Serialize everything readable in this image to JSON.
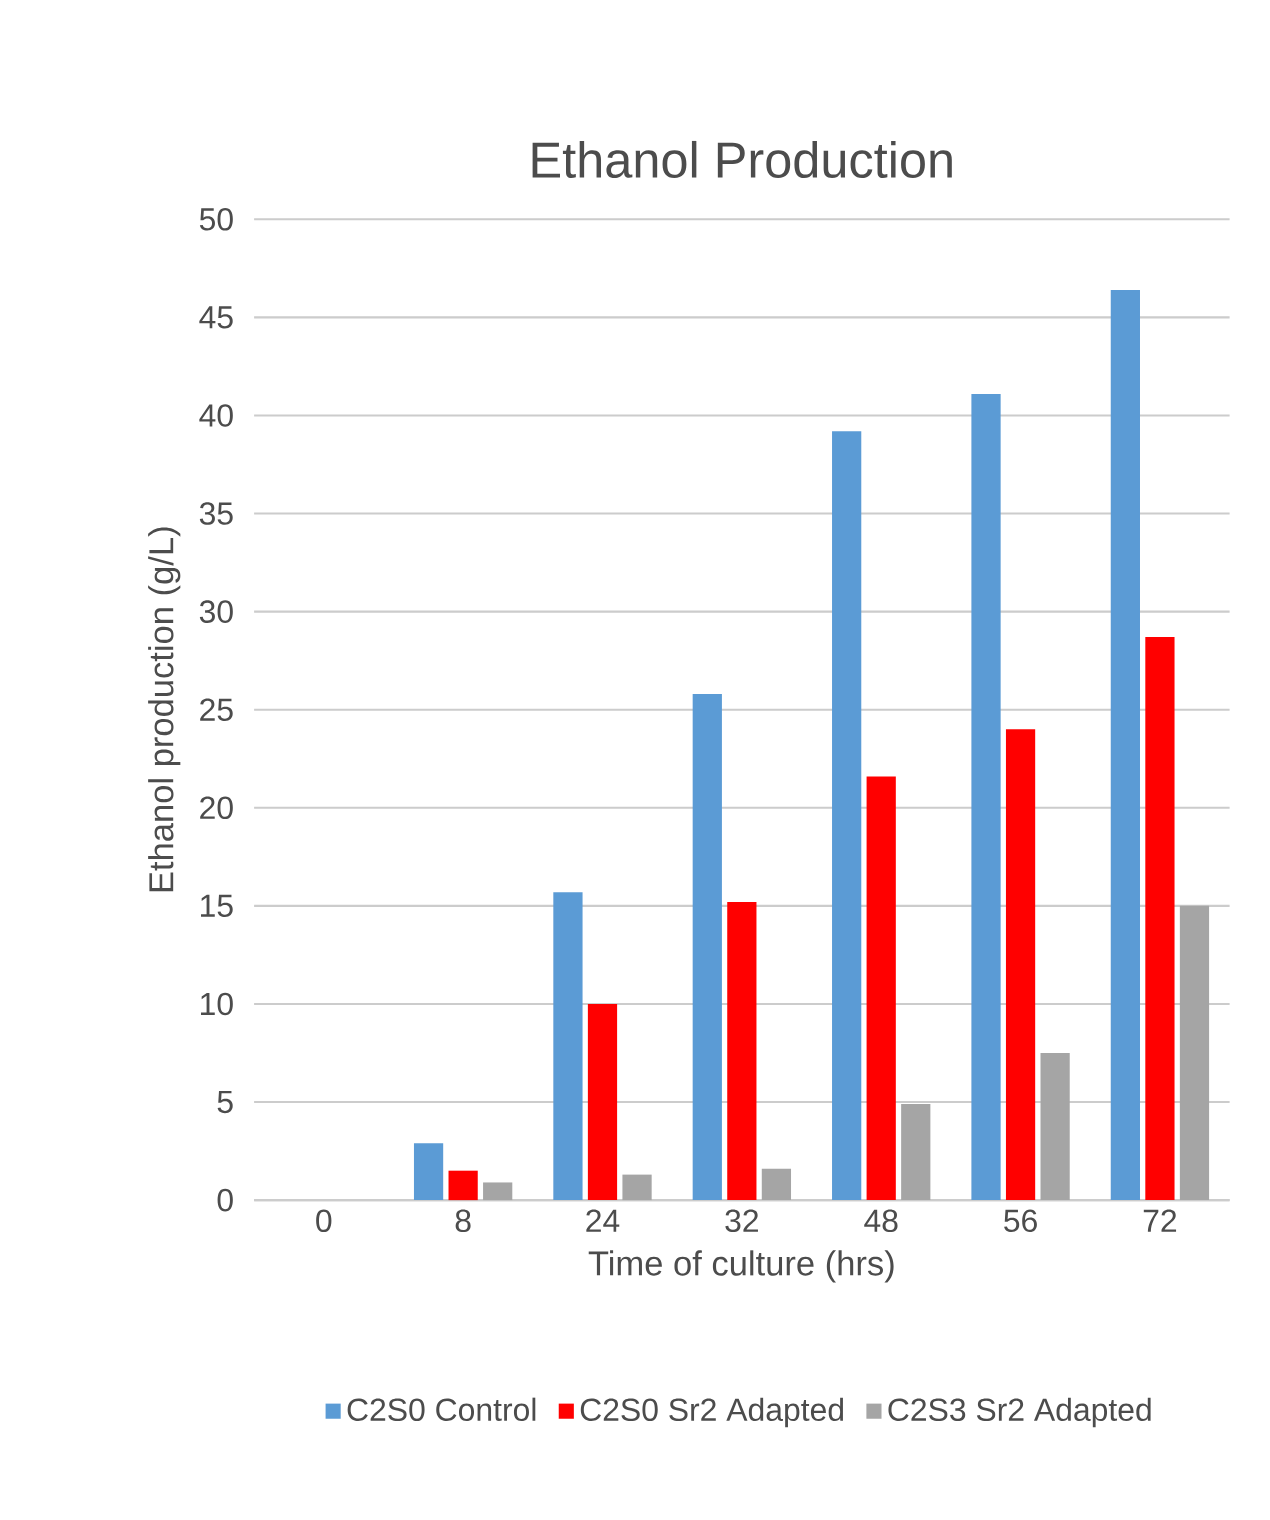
{
  "chart_data": {
    "type": "bar",
    "title": "Ethanol Production",
    "xlabel": "Time of culture (hrs)",
    "ylabel": "Ethanol production   (g/L)",
    "categories": [
      "0",
      "8",
      "24",
      "32",
      "48",
      "56",
      "72"
    ],
    "series": [
      {
        "name": "C2S0 Control",
        "color": "#5b9bd5",
        "values": [
          0,
          2.9,
          15.7,
          25.8,
          39.2,
          41.1,
          46.4
        ]
      },
      {
        "name": "C2S0  Sr2 Adapted",
        "color": "#ff0000",
        "values": [
          0,
          1.5,
          10.0,
          15.2,
          21.6,
          24.0,
          28.7
        ]
      },
      {
        "name": "C2S3 Sr2 Adapted",
        "color": "#a5a5a5",
        "values": [
          0,
          0.9,
          1.3,
          1.6,
          4.9,
          7.5,
          15.0
        ]
      }
    ],
    "ylim": [
      0,
      50
    ],
    "yticks": [
      0,
      5,
      10,
      15,
      20,
      25,
      30,
      35,
      40,
      45,
      50
    ],
    "grid": "y",
    "legend": "bottom"
  }
}
